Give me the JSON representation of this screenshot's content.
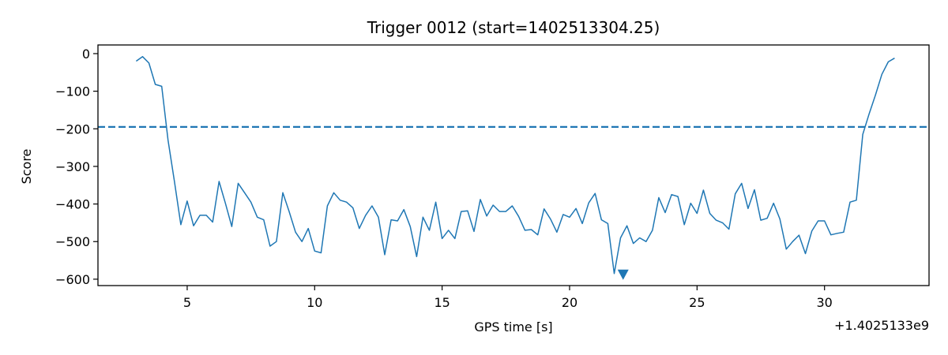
{
  "chart_data": {
    "type": "line",
    "title": "Trigger 0012 (start=1402513304.25)",
    "xlabel": "GPS time [s]",
    "ylabel": "Score",
    "x_offset_label": "+1.4025133e9",
    "xlim": [
      1.5,
      34.1
    ],
    "ylim": [
      -617,
      23
    ],
    "x_ticks": [
      5,
      10,
      15,
      20,
      25,
      30
    ],
    "y_ticks": [
      0,
      -100,
      -200,
      -300,
      -400,
      -500,
      -600
    ],
    "x_tick_labels": [
      "5",
      "10",
      "15",
      "20",
      "25",
      "30"
    ],
    "y_tick_labels": [
      "0",
      "−100",
      "−200",
      "−300",
      "−400",
      "−500",
      "−600"
    ],
    "grid": false,
    "threshold": {
      "y": -195,
      "style": "dashed",
      "color": "#1f77b4"
    },
    "minimum_marker": {
      "x": 22.1,
      "y": -585,
      "shape": "triangle-down",
      "color": "#1f77b4"
    },
    "series": [
      {
        "color": "#1f77b4",
        "points": [
          [
            3.0,
            -20
          ],
          [
            3.25,
            -8
          ],
          [
            3.5,
            -25
          ],
          [
            3.75,
            -82
          ],
          [
            4.0,
            -87
          ],
          [
            4.25,
            -230
          ],
          [
            4.5,
            -340
          ],
          [
            4.75,
            -455
          ],
          [
            5.0,
            -392
          ],
          [
            5.25,
            -458
          ],
          [
            5.5,
            -430
          ],
          [
            5.75,
            -430
          ],
          [
            6.0,
            -448
          ],
          [
            6.25,
            -340
          ],
          [
            6.5,
            -398
          ],
          [
            6.75,
            -460
          ],
          [
            7.0,
            -345
          ],
          [
            7.25,
            -370
          ],
          [
            7.5,
            -395
          ],
          [
            7.75,
            -435
          ],
          [
            8.0,
            -442
          ],
          [
            8.25,
            -512
          ],
          [
            8.5,
            -500
          ],
          [
            8.75,
            -370
          ],
          [
            9.0,
            -420
          ],
          [
            9.25,
            -475
          ],
          [
            9.5,
            -500
          ],
          [
            9.75,
            -465
          ],
          [
            10.0,
            -525
          ],
          [
            10.25,
            -530
          ],
          [
            10.5,
            -405
          ],
          [
            10.75,
            -370
          ],
          [
            11.0,
            -390
          ],
          [
            11.25,
            -395
          ],
          [
            11.5,
            -410
          ],
          [
            11.75,
            -465
          ],
          [
            12.0,
            -430
          ],
          [
            12.25,
            -405
          ],
          [
            12.5,
            -435
          ],
          [
            12.75,
            -535
          ],
          [
            13.0,
            -442
          ],
          [
            13.25,
            -445
          ],
          [
            13.5,
            -415
          ],
          [
            13.75,
            -460
          ],
          [
            14.0,
            -540
          ],
          [
            14.25,
            -435
          ],
          [
            14.5,
            -470
          ],
          [
            14.75,
            -395
          ],
          [
            15.0,
            -492
          ],
          [
            15.25,
            -470
          ],
          [
            15.5,
            -492
          ],
          [
            15.75,
            -420
          ],
          [
            16.0,
            -418
          ],
          [
            16.25,
            -473
          ],
          [
            16.5,
            -388
          ],
          [
            16.75,
            -432
          ],
          [
            17.0,
            -403
          ],
          [
            17.25,
            -420
          ],
          [
            17.5,
            -420
          ],
          [
            17.75,
            -405
          ],
          [
            18.0,
            -433
          ],
          [
            18.25,
            -470
          ],
          [
            18.5,
            -468
          ],
          [
            18.75,
            -482
          ],
          [
            19.0,
            -413
          ],
          [
            19.25,
            -440
          ],
          [
            19.5,
            -475
          ],
          [
            19.75,
            -428
          ],
          [
            20.0,
            -435
          ],
          [
            20.25,
            -412
          ],
          [
            20.5,
            -452
          ],
          [
            20.75,
            -397
          ],
          [
            21.0,
            -372
          ],
          [
            21.25,
            -442
          ],
          [
            21.5,
            -452
          ],
          [
            21.75,
            -585
          ],
          [
            22.0,
            -490
          ],
          [
            22.25,
            -458
          ],
          [
            22.5,
            -505
          ],
          [
            22.75,
            -490
          ],
          [
            23.0,
            -500
          ],
          [
            23.25,
            -470
          ],
          [
            23.5,
            -383
          ],
          [
            23.75,
            -423
          ],
          [
            24.0,
            -375
          ],
          [
            24.25,
            -380
          ],
          [
            24.5,
            -455
          ],
          [
            24.75,
            -398
          ],
          [
            25.0,
            -425
          ],
          [
            25.25,
            -363
          ],
          [
            25.5,
            -425
          ],
          [
            25.75,
            -443
          ],
          [
            26.0,
            -450
          ],
          [
            26.25,
            -467
          ],
          [
            26.5,
            -373
          ],
          [
            26.75,
            -345
          ],
          [
            27.0,
            -412
          ],
          [
            27.25,
            -362
          ],
          [
            27.5,
            -443
          ],
          [
            27.75,
            -438
          ],
          [
            28.0,
            -398
          ],
          [
            28.25,
            -440
          ],
          [
            28.5,
            -520
          ],
          [
            28.75,
            -500
          ],
          [
            29.0,
            -483
          ],
          [
            29.25,
            -532
          ],
          [
            29.5,
            -472
          ],
          [
            29.75,
            -445
          ],
          [
            30.0,
            -445
          ],
          [
            30.25,
            -482
          ],
          [
            30.5,
            -478
          ],
          [
            30.75,
            -475
          ],
          [
            31.0,
            -395
          ],
          [
            31.25,
            -390
          ],
          [
            31.5,
            -215
          ],
          [
            31.75,
            -160
          ],
          [
            32.0,
            -110
          ],
          [
            32.25,
            -55
          ],
          [
            32.5,
            -22
          ],
          [
            32.75,
            -12
          ]
        ]
      }
    ]
  }
}
